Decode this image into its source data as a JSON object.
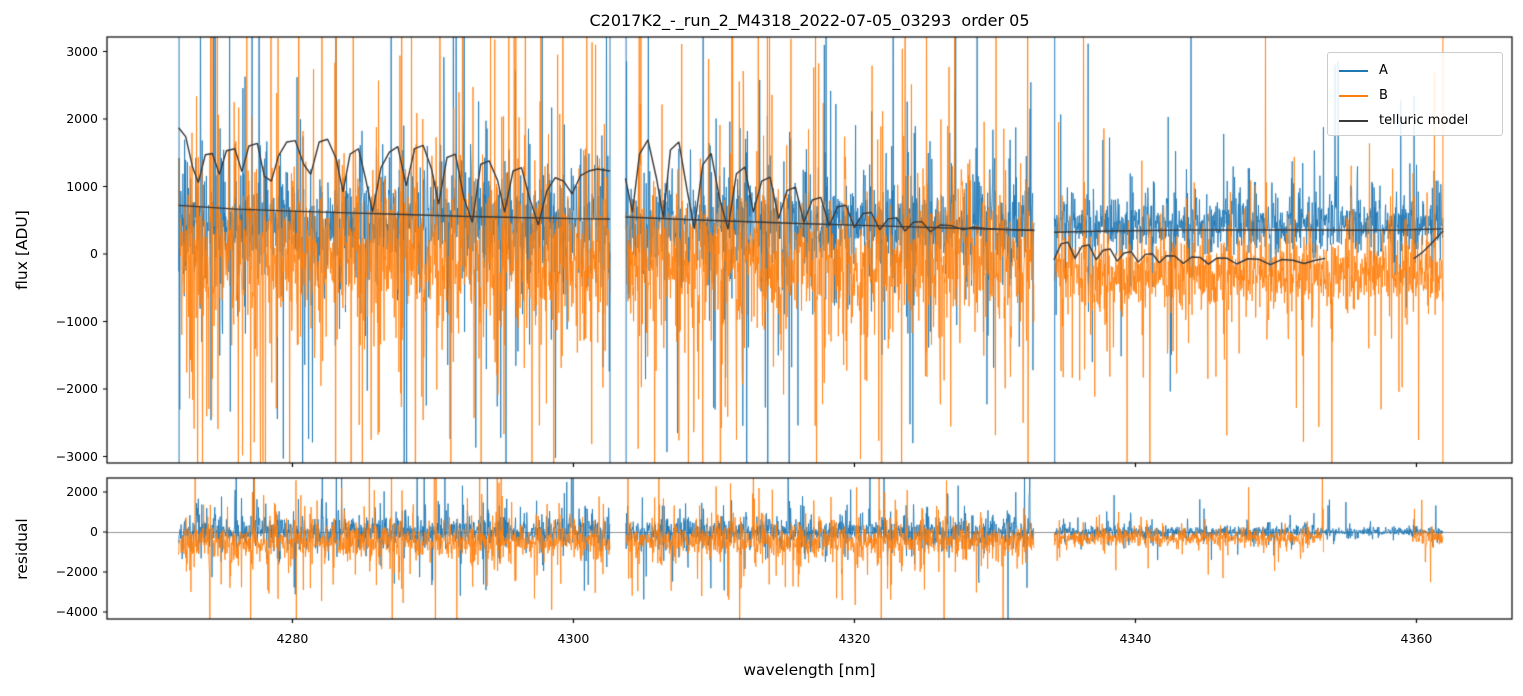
{
  "chart_data": {
    "type": "line",
    "title": "C2017K2_-_run_2_M4318_2022-07-05_03293  order 05",
    "xlabel": "wavelength [nm]",
    "xlim": [
      4266.8,
      4366.8
    ],
    "xticks": [
      4280,
      4300,
      4320,
      4340,
      4360
    ],
    "xticklabels": [
      "4280",
      "4300",
      "4320",
      "4340",
      "4360"
    ],
    "grid": false,
    "panels": [
      {
        "name": "flux",
        "ylabel": "flux [ADU]",
        "ylim": [
          -3096,
          3215
        ],
        "yticks": [
          3000,
          2000,
          1000,
          0,
          -1000,
          -2000,
          -3000
        ],
        "yticklabels": [
          "3000",
          "2000",
          "1000",
          "0",
          "−1000",
          "−2000",
          "−3000"
        ]
      },
      {
        "name": "residual",
        "ylabel": "residual",
        "ylim": [
          -4350,
          2700
        ],
        "yticks": [
          2000,
          0,
          -2000,
          -4000
        ],
        "yticklabels": [
          "2000",
          "0",
          "−2000",
          "−4000"
        ],
        "zero_line_color": "#777777"
      }
    ],
    "legend": {
      "position": "upper right",
      "entries": [
        {
          "label": "A",
          "color": "#1f77b4"
        },
        {
          "label": "B",
          "color": "#ff7f0e"
        },
        {
          "label": "telluric model",
          "color": "#3a3a3a"
        }
      ]
    },
    "series_style": {
      "A_alpha": 0.8,
      "B_alpha": 0.8,
      "model_linewidth": 1.4,
      "noise_linewidth": 1
    },
    "segments": [
      {
        "x0": 4271.9,
        "x1": 4302.62
      },
      {
        "x0": 4303.73,
        "x1": 4332.8
      },
      {
        "x0": 4334.23,
        "x1": 4361.9
      }
    ],
    "edge_lines": {
      "A": [
        4271.93,
        4302.6,
        4303.75,
        4334.25
      ],
      "B": [
        4361.88
      ]
    },
    "model_continuum": [
      [
        [
          4271.9,
          720
        ],
        [
          4276,
          665
        ],
        [
          4280,
          635
        ],
        [
          4284,
          610
        ],
        [
          4288,
          585
        ],
        [
          4292,
          560
        ],
        [
          4296,
          540
        ],
        [
          4300,
          525
        ],
        [
          4302.6,
          518
        ]
      ],
      [
        [
          4303.7,
          548
        ],
        [
          4308,
          512
        ],
        [
          4312,
          482
        ],
        [
          4316,
          452
        ],
        [
          4320,
          428
        ],
        [
          4324,
          402
        ],
        [
          4328,
          378
        ],
        [
          4332.8,
          352
        ]
      ],
      [
        [
          4334.2,
          322
        ],
        [
          4338,
          342
        ],
        [
          4343,
          354
        ],
        [
          4348,
          358
        ],
        [
          4352,
          356
        ],
        [
          4356,
          352
        ],
        [
          4359,
          356
        ],
        [
          4361.9,
          372
        ]
      ]
    ],
    "model_telluric": [
      [
        [
          4271.9,
          1870
        ],
        [
          4272.4,
          1740
        ],
        [
          4272.9,
          1280
        ],
        [
          4273.3,
          1060
        ],
        [
          4273.8,
          1470
        ],
        [
          4274.3,
          1490
        ],
        [
          4274.8,
          1180
        ],
        [
          4275.3,
          1530
        ],
        [
          4275.9,
          1560
        ],
        [
          4276.4,
          1220
        ],
        [
          4276.9,
          1600
        ],
        [
          4277.5,
          1640
        ],
        [
          4278.0,
          1150
        ],
        [
          4278.5,
          1080
        ],
        [
          4279.0,
          1450
        ],
        [
          4279.6,
          1660
        ],
        [
          4280.2,
          1680
        ],
        [
          4280.8,
          1330
        ],
        [
          4281.3,
          1180
        ],
        [
          4281.9,
          1660
        ],
        [
          4282.5,
          1700
        ],
        [
          4283.1,
          1420
        ],
        [
          4283.6,
          920
        ],
        [
          4284.1,
          1480
        ],
        [
          4284.7,
          1560
        ],
        [
          4285.2,
          1120
        ],
        [
          4285.7,
          620
        ],
        [
          4286.3,
          1280
        ],
        [
          4286.9,
          1510
        ],
        [
          4287.5,
          1590
        ],
        [
          4288.1,
          1010
        ],
        [
          4288.7,
          1560
        ],
        [
          4289.3,
          1610
        ],
        [
          4289.9,
          1260
        ],
        [
          4290.4,
          740
        ],
        [
          4291.0,
          1430
        ],
        [
          4291.6,
          1480
        ],
        [
          4292.2,
          830
        ],
        [
          4292.8,
          470
        ],
        [
          4293.4,
          1330
        ],
        [
          4294.0,
          1380
        ],
        [
          4294.6,
          1090
        ],
        [
          4295.1,
          620
        ],
        [
          4295.7,
          1230
        ],
        [
          4296.3,
          1280
        ],
        [
          4296.9,
          810
        ],
        [
          4297.5,
          430
        ],
        [
          4298.1,
          930
        ],
        [
          4298.7,
          1130
        ],
        [
          4299.3,
          1080
        ],
        [
          4299.9,
          890
        ],
        [
          4300.5,
          1160
        ],
        [
          4301.1,
          1230
        ],
        [
          4301.7,
          1260
        ],
        [
          4302.6,
          1230
        ]
      ],
      [
        [
          4303.7,
          1120
        ],
        [
          4304.2,
          620
        ],
        [
          4304.7,
          1480
        ],
        [
          4305.3,
          1690
        ],
        [
          4305.9,
          1130
        ],
        [
          4306.4,
          540
        ],
        [
          4306.9,
          1540
        ],
        [
          4307.5,
          1660
        ],
        [
          4308.1,
          930
        ],
        [
          4308.6,
          380
        ],
        [
          4309.2,
          1320
        ],
        [
          4309.8,
          1490
        ],
        [
          4310.4,
          820
        ],
        [
          4311.0,
          370
        ],
        [
          4311.6,
          1190
        ],
        [
          4312.2,
          1290
        ],
        [
          4312.8,
          620
        ],
        [
          4313.4,
          1080
        ],
        [
          4314.0,
          1140
        ],
        [
          4314.6,
          520
        ],
        [
          4315.2,
          940
        ],
        [
          4315.8,
          990
        ],
        [
          4316.4,
          470
        ],
        [
          4317.0,
          800
        ],
        [
          4317.6,
          840
        ],
        [
          4318.2,
          420
        ],
        [
          4318.8,
          700
        ],
        [
          4319.4,
          720
        ],
        [
          4320.0,
          390
        ],
        [
          4320.6,
          600
        ],
        [
          4321.2,
          615
        ],
        [
          4321.8,
          360
        ],
        [
          4322.4,
          520
        ],
        [
          4323.0,
          535
        ],
        [
          4323.6,
          340
        ],
        [
          4324.2,
          470
        ],
        [
          4324.8,
          480
        ],
        [
          4325.4,
          330
        ],
        [
          4326.1,
          430
        ],
        [
          4326.9,
          420
        ],
        [
          4327.7,
          360
        ],
        [
          4328.5,
          400
        ],
        [
          4329.3,
          380
        ],
        [
          4330.1,
          370
        ],
        [
          4330.9,
          362
        ],
        [
          4331.7,
          356
        ],
        [
          4332.8,
          348
        ]
      ],
      [
        [
          4334.2,
          -90
        ],
        [
          4334.7,
          150
        ],
        [
          4335.2,
          175
        ],
        [
          4335.7,
          -65
        ],
        [
          4336.2,
          115
        ],
        [
          4336.7,
          135
        ],
        [
          4337.2,
          -85
        ],
        [
          4337.7,
          55
        ],
        [
          4338.2,
          75
        ],
        [
          4338.7,
          -105
        ],
        [
          4339.2,
          15
        ],
        [
          4339.7,
          35
        ],
        [
          4340.2,
          -120
        ],
        [
          4340.7,
          -5
        ],
        [
          4341.2,
          5
        ],
        [
          4341.7,
          -130
        ],
        [
          4342.2,
          -25
        ],
        [
          4342.8,
          -30
        ],
        [
          4343.4,
          -140
        ],
        [
          4344.0,
          -45
        ],
        [
          4344.6,
          -50
        ],
        [
          4345.2,
          -150
        ],
        [
          4345.8,
          -60
        ],
        [
          4346.5,
          -62
        ],
        [
          4347.2,
          -148
        ],
        [
          4348.0,
          -70
        ],
        [
          4348.8,
          -78
        ],
        [
          4349.6,
          -158
        ],
        [
          4350.4,
          -82
        ],
        [
          4351.2,
          -92
        ],
        [
          4352.0,
          -140
        ],
        [
          4352.8,
          -92
        ],
        [
          4353.5,
          -65
        ]
      ],
      [
        [
          4359.8,
          -70
        ],
        [
          4360.4,
          20
        ],
        [
          4361.0,
          140
        ],
        [
          4361.5,
          255
        ],
        [
          4361.9,
          345
        ]
      ]
    ],
    "noise": {
      "seed": 1337,
      "step_nm": 0.025,
      "burst": {
        "p1": 1.45,
        "p2": 0.52,
        "base": 0.45,
        "amp": 1.2
      },
      "flux": {
        "A": [
          {
            "mu": 480,
            "sigma": 620,
            "spike_p": 0.05,
            "spike_scale": 2100,
            "up_bias": 0.4
          },
          {
            "mu": 450,
            "sigma": 540,
            "spike_p": 0.045,
            "spike_scale": 1900,
            "up_bias": 0.4
          },
          {
            "mu": 430,
            "sigma": 310,
            "spike_p": 0.03,
            "spike_scale": 1250,
            "up_bias": 0.7
          }
        ],
        "B": [
          {
            "mu": -60,
            "sigma": 900,
            "spike_p": 0.065,
            "spike_scale": 2500,
            "up_bias": 0.55
          },
          {
            "mu": -120,
            "sigma": 780,
            "spike_p": 0.055,
            "spike_scale": 2300,
            "up_bias": 0.5
          },
          {
            "mu": -300,
            "sigma": 430,
            "spike_p": 0.035,
            "spike_scale": 1500,
            "up_bias": 0.35
          }
        ]
      },
      "residual": {
        "A": [
          {
            "mu": 30,
            "sigma": 620,
            "spike_p": 0.04,
            "spike_scale": 1800,
            "up_bias": 0.45
          },
          {
            "mu": 0,
            "sigma": 540,
            "spike_p": 0.04,
            "spike_scale": 1700,
            "up_bias": 0.45
          },
          {
            "mu": 0,
            "sigma": 260,
            "spike_p": 0.02,
            "spike_scale": 1100,
            "up_bias": 0.5
          }
        ],
        "B": [
          {
            "mu": -480,
            "sigma": 680,
            "spike_p": 0.05,
            "spike_scale": 2000,
            "up_bias": 0.45
          },
          {
            "mu": -450,
            "sigma": 620,
            "spike_p": 0.05,
            "spike_scale": 1900,
            "up_bias": 0.45
          },
          {
            "mu": -280,
            "sigma": 330,
            "spike_p": 0.025,
            "spike_scale": 1200,
            "up_bias": 0.4
          }
        ]
      },
      "residual_B_gap": [
        4353.4,
        4359.7
      ],
      "residual_A_quiet": {
        "from": 4353.4,
        "sigma": 170,
        "spike_p": 0.008
      }
    }
  }
}
